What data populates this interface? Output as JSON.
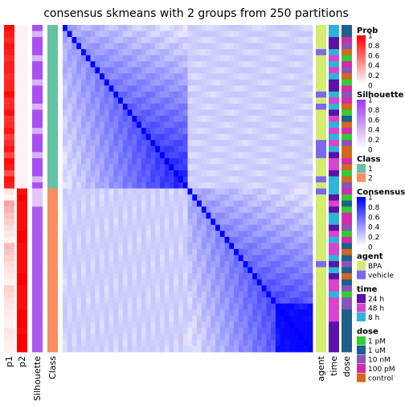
{
  "chart_data": {
    "type": "heatmap",
    "title": "consensus skmeans with 2 groups from 250 partitions",
    "n_samples": 54,
    "class_sizes": [
      27,
      27
    ],
    "row_annotations_left": [
      "p1",
      "p2",
      "Silhouette",
      "Class"
    ],
    "col_annotations_right": [
      "agent",
      "time",
      "dose"
    ],
    "legends": [
      {
        "title": "Prob",
        "type": "gradient",
        "ticks": [
          "1",
          "0.8",
          "0.6",
          "0.4",
          "0.2",
          "0"
        ],
        "colors": [
          "#ff0000",
          "#ffffff"
        ]
      },
      {
        "title": "Silhouette",
        "type": "gradient",
        "ticks": [
          "1",
          "0.8",
          "0.6",
          "0.4",
          "0.2",
          "0"
        ],
        "colors": [
          "#9f3cf0",
          "#ffffff"
        ]
      },
      {
        "title": "Class",
        "type": "discrete",
        "items": [
          {
            "label": "1",
            "color": "#66c2a5"
          },
          {
            "label": "2",
            "color": "#fc8d62"
          }
        ]
      },
      {
        "title": "Consensus",
        "type": "gradient",
        "ticks": [
          "1",
          "0.8",
          "0.6",
          "0.4",
          "0.2",
          "0"
        ],
        "colors": [
          "#0000ff",
          "#ffffff"
        ]
      },
      {
        "title": "agent",
        "type": "discrete",
        "items": [
          {
            "label": "BPA",
            "color": "#d4ec6f"
          },
          {
            "label": "vehicle",
            "color": "#7b68ee"
          }
        ]
      },
      {
        "title": "time",
        "type": "discrete",
        "items": [
          {
            "label": "24 h",
            "color": "#5a12a8"
          },
          {
            "label": "48 h",
            "color": "#d943d0"
          },
          {
            "label": "8 h",
            "color": "#2eb4d6"
          }
        ]
      },
      {
        "title": "dose",
        "type": "discrete",
        "items": [
          {
            "label": "1 pM",
            "color": "#33cc33"
          },
          {
            "label": "1 uM",
            "color": "#1f5f8b"
          },
          {
            "label": "10 nM",
            "color": "#8a55b8"
          },
          {
            "label": "100 pM",
            "color": "#d42aa9"
          },
          {
            "label": "control",
            "color": "#d2691e"
          }
        ]
      }
    ],
    "agent_order": [
      0,
      0,
      0,
      0,
      1,
      0,
      0,
      0,
      0,
      0,
      0,
      1,
      0,
      1,
      0,
      0,
      0,
      0,
      0,
      1,
      1,
      1,
      0,
      0,
      0,
      1,
      0,
      1,
      0,
      0,
      0,
      0,
      0,
      0,
      0,
      0,
      0,
      0,
      0,
      1,
      0,
      0,
      0,
      0,
      0,
      0,
      0,
      0,
      0,
      0,
      0,
      0,
      0,
      0
    ],
    "time_order": [
      2,
      2,
      0,
      0,
      2,
      1,
      2,
      1,
      2,
      0,
      0,
      2,
      1,
      2,
      0,
      1,
      2,
      1,
      2,
      1,
      2,
      0,
      1,
      1,
      0,
      2,
      2,
      2,
      0,
      1,
      0,
      2,
      2,
      0,
      1,
      2,
      1,
      1,
      2,
      0,
      2,
      0,
      1,
      1,
      2,
      1,
      1,
      1,
      1,
      0,
      0,
      0,
      0,
      0
    ],
    "dose_order": [
      1,
      1,
      3,
      2,
      4,
      0,
      3,
      2,
      4,
      0,
      3,
      2,
      3,
      4,
      0,
      1,
      4,
      3,
      0,
      2,
      4,
      4,
      3,
      4,
      0,
      4,
      2,
      3,
      0,
      1,
      0,
      3,
      3,
      2,
      0,
      3,
      1,
      4,
      1,
      2,
      1,
      4,
      1,
      2,
      0,
      2,
      2,
      1,
      1,
      1,
      1,
      1,
      1,
      1
    ]
  }
}
